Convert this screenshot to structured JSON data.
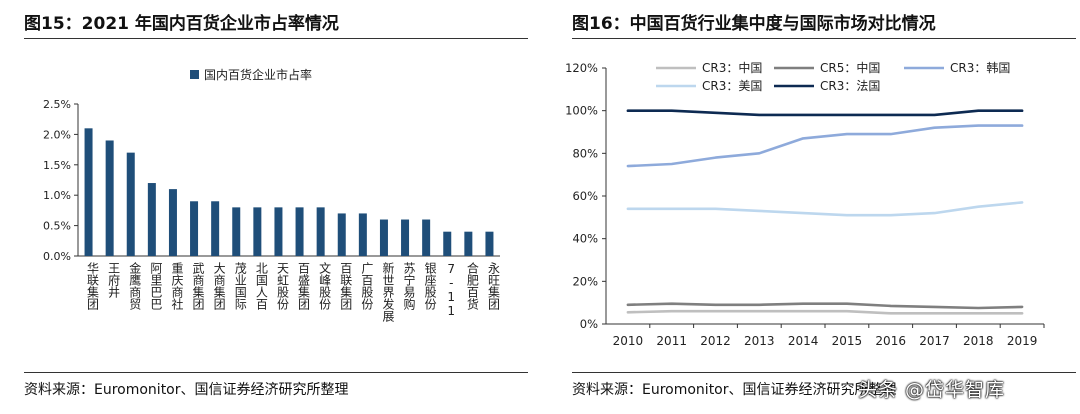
{
  "left": {
    "title": "图15：2021 年国内百货企业市占率情况",
    "source": "资料来源：Euromonitor、国信证券经济研究所整理"
  },
  "right": {
    "title": "图16：中国百货行业集中度与国际市场对比情况",
    "source": "资料来源：Euromonitor、国信证券经济研究所整理"
  },
  "watermark": "头条 @岱华智库",
  "chart_data": [
    {
      "type": "bar",
      "title": "图15：2021 年国内百货企业市占率情况",
      "categories": [
        "华联集团",
        "王府井",
        "金鹰商贸",
        "阿里巴巴",
        "重庆商社",
        "武商集团",
        "大商集团",
        "茂业国际",
        "北国人百",
        "天虹股份",
        "百盛集团",
        "文峰股份",
        "百联集团",
        "广百股份",
        "新世界发展",
        "苏宁易购",
        "银座股份",
        "7-11",
        "合肥百货",
        "永旺集团"
      ],
      "series": [
        {
          "name": "国内百货企业市占率",
          "values": [
            2.1,
            1.9,
            1.7,
            1.2,
            1.1,
            0.9,
            0.9,
            0.8,
            0.8,
            0.8,
            0.8,
            0.8,
            0.7,
            0.7,
            0.6,
            0.6,
            0.6,
            0.4,
            0.4,
            0.4
          ],
          "color": "#1f4e79"
        }
      ],
      "yticks": [
        "0.0%",
        "0.5%",
        "1.0%",
        "1.5%",
        "2.0%",
        "2.5%"
      ],
      "ylim": [
        0,
        2.5
      ],
      "legend_position": "top-center",
      "grid": false
    },
    {
      "type": "line",
      "title": "图16：中国百货行业集中度与国际市场对比情况",
      "x": [
        2010,
        2011,
        2012,
        2013,
        2014,
        2015,
        2016,
        2017,
        2018,
        2019
      ],
      "yticks": [
        "0%",
        "20%",
        "40%",
        "60%",
        "80%",
        "100%",
        "120%"
      ],
      "ylim": [
        0,
        120
      ],
      "legend_position": "top",
      "grid": false,
      "series": [
        {
          "name": "CR3：中国",
          "color": "#bfbfbf",
          "values": [
            5.5,
            6,
            6,
            6,
            6,
            6,
            5,
            5,
            5,
            5
          ]
        },
        {
          "name": "CR5：中国",
          "color": "#7f7f7f",
          "values": [
            9,
            9.5,
            9,
            9,
            9.5,
            9.5,
            8.5,
            8,
            7.5,
            8
          ]
        },
        {
          "name": "CR3：韩国",
          "color": "#8eaadb",
          "values": [
            74,
            75,
            78,
            80,
            87,
            89,
            89,
            92,
            93,
            93
          ]
        },
        {
          "name": "CR3：美国",
          "color": "#bdd7ee",
          "values": [
            54,
            54,
            54,
            53,
            52,
            51,
            51,
            52,
            55,
            57
          ]
        },
        {
          "name": "CR3：法国",
          "color": "#0d2a52",
          "values": [
            100,
            100,
            99,
            98,
            98,
            98,
            98,
            98,
            100,
            100
          ]
        }
      ]
    }
  ]
}
